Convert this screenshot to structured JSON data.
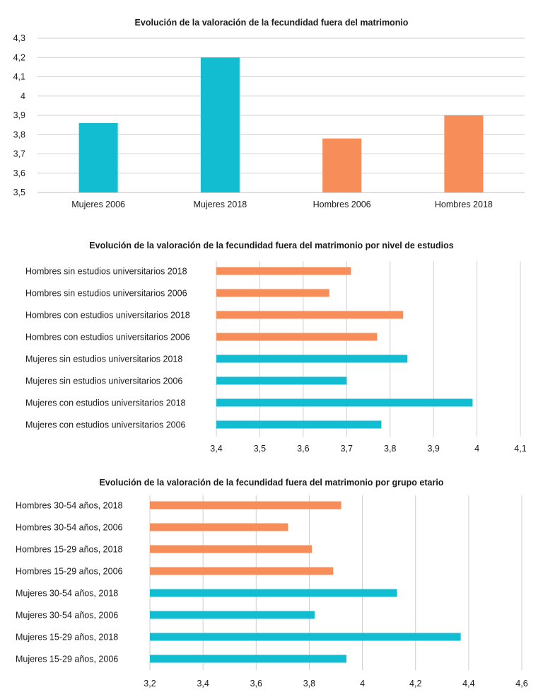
{
  "colors": {
    "mujeres": "#12BCD1",
    "hombres": "#F78D59"
  },
  "chart_data": [
    {
      "type": "bar",
      "orientation": "vertical",
      "title": "Evolución de la valoración de la fecundidad fuera del matrimonio",
      "categories": [
        "Mujeres 2006",
        "Mujeres 2018",
        "Hombres 2006",
        "Hombres 2018"
      ],
      "values": [
        3.86,
        4.2,
        3.78,
        3.9
      ],
      "groups": [
        "mujeres",
        "mujeres",
        "hombres",
        "hombres"
      ],
      "ylim": [
        3.5,
        4.3
      ],
      "ticks": [
        "3,5",
        "3,6",
        "3,7",
        "3,8",
        "3,9",
        "4",
        "4,1",
        "4,2",
        "4,3"
      ],
      "grid": true
    },
    {
      "type": "bar",
      "orientation": "horizontal",
      "title": "Evolución de la valoración de la fecundidad fuera del matrimonio por nivel de estudios",
      "categories": [
        "Hombres sin estudios universitarios 2018",
        "Hombres sin estudios universitarios 2006",
        "Hombres con estudios universitarios 2018",
        "Hombres con estudios universitarios 2006",
        "Mujeres sin estudios universitarios 2018",
        "Mujeres sin estudios universitarios 2006",
        "Mujeres con estudios universitarios 2018",
        "Mujeres con estudios universitarios 2006"
      ],
      "values": [
        3.71,
        3.66,
        3.83,
        3.77,
        3.84,
        3.7,
        3.99,
        3.78
      ],
      "groups": [
        "hombres",
        "hombres",
        "hombres",
        "hombres",
        "mujeres",
        "mujeres",
        "mujeres",
        "mujeres"
      ],
      "xlim": [
        3.4,
        4.1
      ],
      "ticks": [
        "3,4",
        "3,5",
        "3,6",
        "3,7",
        "3,8",
        "3,9",
        "4",
        "4,1"
      ],
      "grid": true
    },
    {
      "type": "bar",
      "orientation": "horizontal",
      "title": "Evolución de la valoración de la fecundidad fuera del matrimonio por grupo etario",
      "categories": [
        "Hombres 30-54 años, 2018",
        "Hombres 30-54 años, 2006",
        "Hombres 15-29 años, 2018",
        "Hombres 15-29 años, 2006",
        "Mujeres 30-54 años, 2018",
        "Mujeres 30-54 años, 2006",
        "Mujeres 15-29 años, 2018",
        "Mujeres 15-29 años, 2006"
      ],
      "values": [
        3.92,
        3.72,
        3.81,
        3.89,
        4.13,
        3.82,
        4.37,
        3.94
      ],
      "groups": [
        "hombres",
        "hombres",
        "hombres",
        "hombres",
        "mujeres",
        "mujeres",
        "mujeres",
        "mujeres"
      ],
      "xlim": [
        3.2,
        4.6
      ],
      "ticks": [
        "3,2",
        "3,4",
        "3,6",
        "3,8",
        "4",
        "4,2",
        "4,4",
        "4,6"
      ],
      "grid": true
    }
  ]
}
